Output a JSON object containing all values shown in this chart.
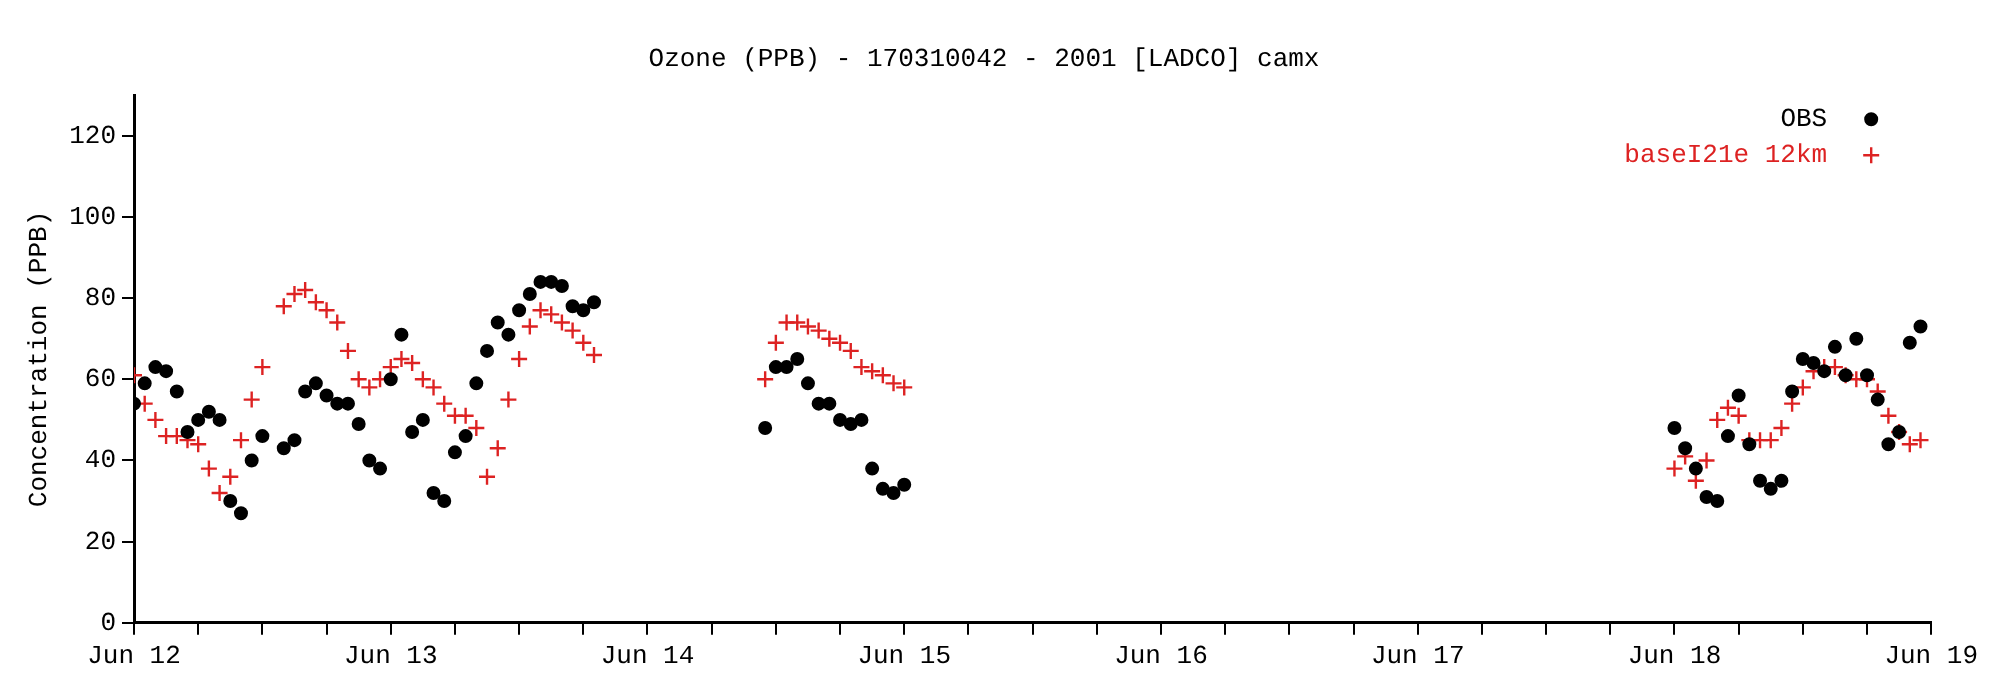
{
  "chart_data": {
    "type": "scatter",
    "title": "Ozone (PPB) - 170310042 - 2001 [LADCO] camx",
    "ylabel": "Concentration (PPB)",
    "xlim": [
      "2001-06-12T00:00",
      "2001-06-19T00:00"
    ],
    "xticks": [
      {
        "value": "2001-06-12",
        "label": "Jun 12"
      },
      {
        "value": "2001-06-12T06:00",
        "label": null
      },
      {
        "value": "2001-06-12T12:00",
        "label": null
      },
      {
        "value": "2001-06-12T18:00",
        "label": null
      },
      {
        "value": "2001-06-13",
        "label": "Jun 13"
      },
      {
        "value": "2001-06-13T06:00",
        "label": null
      },
      {
        "value": "2001-06-13T12:00",
        "label": null
      },
      {
        "value": "2001-06-13T18:00",
        "label": null
      },
      {
        "value": "2001-06-14",
        "label": "Jun 14"
      },
      {
        "value": "2001-06-14T06:00",
        "label": null
      },
      {
        "value": "2001-06-14T12:00",
        "label": null
      },
      {
        "value": "2001-06-14T18:00",
        "label": null
      },
      {
        "value": "2001-06-15",
        "label": "Jun 15"
      },
      {
        "value": "2001-06-15T06:00",
        "label": null
      },
      {
        "value": "2001-06-15T12:00",
        "label": null
      },
      {
        "value": "2001-06-15T18:00",
        "label": null
      },
      {
        "value": "2001-06-16",
        "label": "Jun 16"
      },
      {
        "value": "2001-06-16T06:00",
        "label": null
      },
      {
        "value": "2001-06-16T12:00",
        "label": null
      },
      {
        "value": "2001-06-16T18:00",
        "label": null
      },
      {
        "value": "2001-06-17",
        "label": "Jun 17"
      },
      {
        "value": "2001-06-17T06:00",
        "label": null
      },
      {
        "value": "2001-06-17T12:00",
        "label": null
      },
      {
        "value": "2001-06-17T18:00",
        "label": null
      },
      {
        "value": "2001-06-18",
        "label": "Jun 18"
      },
      {
        "value": "2001-06-18T06:00",
        "label": null
      },
      {
        "value": "2001-06-18T12:00",
        "label": null
      },
      {
        "value": "2001-06-18T18:00",
        "label": null
      },
      {
        "value": "2001-06-19",
        "label": "Jun 19"
      }
    ],
    "ylim": [
      0,
      130
    ],
    "yticks": [
      0,
      20,
      40,
      60,
      80,
      100,
      120
    ],
    "grid": false,
    "legend": "top right",
    "series": [
      {
        "name": "OBS",
        "color": "#000000",
        "marker": "circle",
        "x": [
          "2001-06-12T00:00",
          "2001-06-12T01:00",
          "2001-06-12T02:00",
          "2001-06-12T03:00",
          "2001-06-12T04:00",
          "2001-06-12T05:00",
          "2001-06-12T06:00",
          "2001-06-12T07:00",
          "2001-06-12T08:00",
          "2001-06-12T09:00",
          "2001-06-12T10:00",
          "2001-06-12T11:00",
          "2001-06-12T12:00",
          "2001-06-12T14:00",
          "2001-06-12T15:00",
          "2001-06-12T16:00",
          "2001-06-12T17:00",
          "2001-06-12T18:00",
          "2001-06-12T19:00",
          "2001-06-12T20:00",
          "2001-06-12T21:00",
          "2001-06-12T22:00",
          "2001-06-12T23:00",
          "2001-06-13T00:00",
          "2001-06-13T01:00",
          "2001-06-13T02:00",
          "2001-06-13T03:00",
          "2001-06-13T04:00",
          "2001-06-13T05:00",
          "2001-06-13T06:00",
          "2001-06-13T07:00",
          "2001-06-13T08:00",
          "2001-06-13T09:00",
          "2001-06-13T10:00",
          "2001-06-13T11:00",
          "2001-06-13T12:00",
          "2001-06-13T13:00",
          "2001-06-13T14:00",
          "2001-06-13T15:00",
          "2001-06-13T16:00",
          "2001-06-13T17:00",
          "2001-06-13T18:00",
          "2001-06-13T19:00",
          "2001-06-14T11:00",
          "2001-06-14T12:00",
          "2001-06-14T13:00",
          "2001-06-14T14:00",
          "2001-06-14T15:00",
          "2001-06-14T16:00",
          "2001-06-14T17:00",
          "2001-06-14T18:00",
          "2001-06-14T19:00",
          "2001-06-14T20:00",
          "2001-06-14T21:00",
          "2001-06-14T22:00",
          "2001-06-14T23:00",
          "2001-06-15T00:00",
          "2001-06-18T00:00",
          "2001-06-18T01:00",
          "2001-06-18T02:00",
          "2001-06-18T03:00",
          "2001-06-18T04:00",
          "2001-06-18T05:00",
          "2001-06-18T06:00",
          "2001-06-18T07:00",
          "2001-06-18T08:00",
          "2001-06-18T09:00",
          "2001-06-18T10:00",
          "2001-06-18T11:00",
          "2001-06-18T12:00",
          "2001-06-18T13:00",
          "2001-06-18T14:00",
          "2001-06-18T15:00",
          "2001-06-18T16:00",
          "2001-06-18T17:00",
          "2001-06-18T18:00",
          "2001-06-18T19:00",
          "2001-06-18T20:00",
          "2001-06-18T21:00",
          "2001-06-18T22:00",
          "2001-06-18T23:00"
        ],
        "values": [
          54,
          59,
          63,
          62,
          57,
          47,
          50,
          52,
          50,
          30,
          27,
          40,
          46,
          43,
          45,
          57,
          59,
          56,
          54,
          54,
          49,
          40,
          38,
          60,
          71,
          47,
          50,
          32,
          30,
          42,
          46,
          59,
          67,
          74,
          71,
          77,
          81,
          84,
          84,
          83,
          78,
          77,
          79,
          48,
          63,
          63,
          65,
          59,
          54,
          54,
          50,
          49,
          50,
          38,
          33,
          32,
          34,
          48,
          43,
          38,
          31,
          30,
          46,
          56,
          44,
          35,
          33,
          35,
          57,
          65,
          64,
          62,
          68,
          61,
          70,
          61,
          55,
          44,
          47,
          69,
          73
        ]
      },
      {
        "name": "baseI21e 12km",
        "color": "#dd2222",
        "marker": "cross",
        "x": [
          "2001-06-12T00:00",
          "2001-06-12T01:00",
          "2001-06-12T02:00",
          "2001-06-12T03:00",
          "2001-06-12T04:00",
          "2001-06-12T05:00",
          "2001-06-12T06:00",
          "2001-06-12T07:00",
          "2001-06-12T08:00",
          "2001-06-12T09:00",
          "2001-06-12T10:00",
          "2001-06-12T11:00",
          "2001-06-12T12:00",
          "2001-06-12T14:00",
          "2001-06-12T15:00",
          "2001-06-12T16:00",
          "2001-06-12T17:00",
          "2001-06-12T18:00",
          "2001-06-12T19:00",
          "2001-06-12T20:00",
          "2001-06-12T21:00",
          "2001-06-12T22:00",
          "2001-06-12T23:00",
          "2001-06-13T00:00",
          "2001-06-13T01:00",
          "2001-06-13T02:00",
          "2001-06-13T03:00",
          "2001-06-13T04:00",
          "2001-06-13T05:00",
          "2001-06-13T06:00",
          "2001-06-13T07:00",
          "2001-06-13T08:00",
          "2001-06-13T09:00",
          "2001-06-13T10:00",
          "2001-06-13T11:00",
          "2001-06-13T12:00",
          "2001-06-13T13:00",
          "2001-06-13T14:00",
          "2001-06-13T15:00",
          "2001-06-13T16:00",
          "2001-06-13T17:00",
          "2001-06-13T18:00",
          "2001-06-13T19:00",
          "2001-06-14T11:00",
          "2001-06-14T12:00",
          "2001-06-14T13:00",
          "2001-06-14T14:00",
          "2001-06-14T15:00",
          "2001-06-14T16:00",
          "2001-06-14T17:00",
          "2001-06-14T18:00",
          "2001-06-14T19:00",
          "2001-06-14T20:00",
          "2001-06-14T21:00",
          "2001-06-14T22:00",
          "2001-06-14T23:00",
          "2001-06-15T00:00",
          "2001-06-18T00:00",
          "2001-06-18T01:00",
          "2001-06-18T02:00",
          "2001-06-18T03:00",
          "2001-06-18T04:00",
          "2001-06-18T05:00",
          "2001-06-18T06:00",
          "2001-06-18T07:00",
          "2001-06-18T08:00",
          "2001-06-18T09:00",
          "2001-06-18T10:00",
          "2001-06-18T11:00",
          "2001-06-18T12:00",
          "2001-06-18T13:00",
          "2001-06-18T14:00",
          "2001-06-18T15:00",
          "2001-06-18T16:00",
          "2001-06-18T17:00",
          "2001-06-18T18:00",
          "2001-06-18T19:00",
          "2001-06-18T20:00",
          "2001-06-18T21:00",
          "2001-06-18T22:00",
          "2001-06-18T23:00"
        ],
        "values": [
          61,
          54,
          50,
          46,
          46,
          45,
          44,
          38,
          32,
          36,
          45,
          55,
          63,
          78,
          81,
          82,
          79,
          77,
          74,
          67,
          60,
          58,
          60,
          63,
          65,
          64,
          60,
          58,
          54,
          51,
          51,
          48,
          36,
          43,
          55,
          65,
          73,
          77,
          76,
          74,
          72,
          69,
          66,
          60,
          69,
          74,
          74,
          73,
          72,
          70,
          69,
          67,
          63,
          62,
          61,
          59,
          58,
          38,
          41,
          35,
          40,
          50,
          53,
          51,
          45,
          45,
          45,
          48,
          54,
          58,
          62,
          63,
          63,
          61,
          60,
          60,
          57,
          51,
          47,
          44,
          45
        ]
      }
    ]
  }
}
